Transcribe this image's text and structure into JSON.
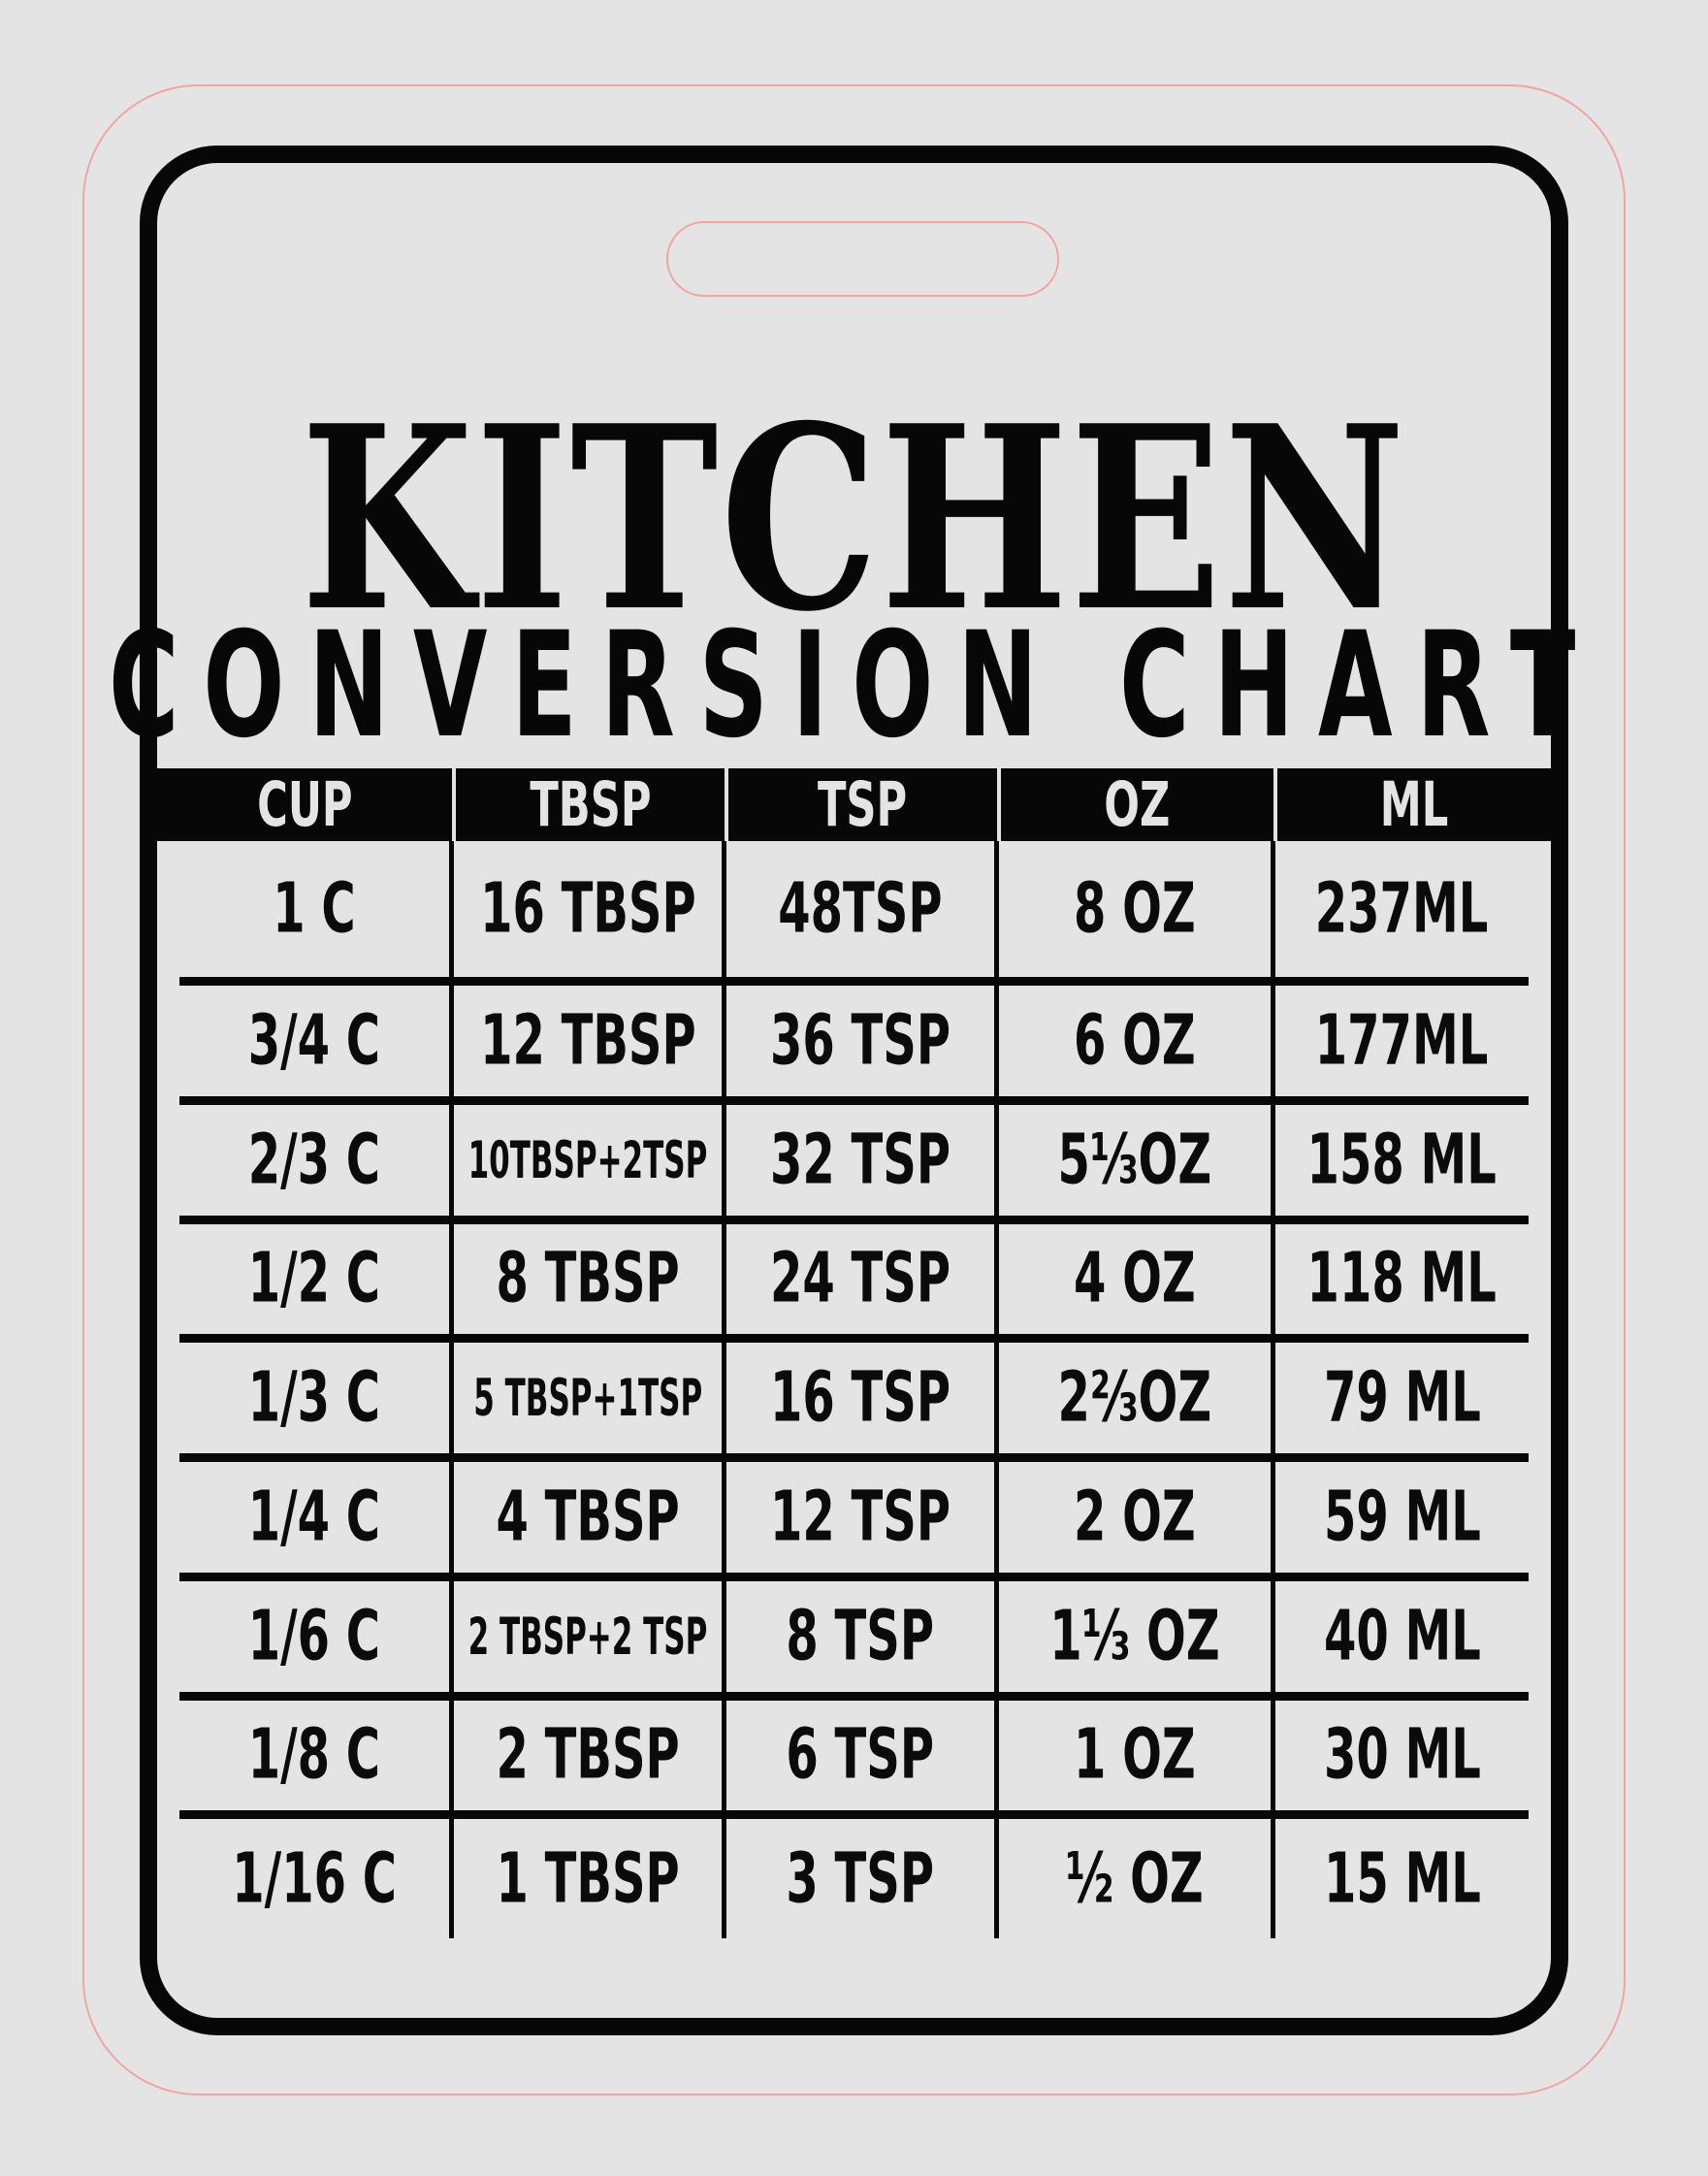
{
  "page": {
    "background_color": "#e5e4e4",
    "cut_line_color": "#f0a5a5",
    "card_border_color": "#070707"
  },
  "title": {
    "line1": "KITCHEN",
    "line2": "CONVERSION CHART"
  },
  "table": {
    "headers": [
      "CUP",
      "TBSP",
      "TSP",
      "OZ",
      "ML"
    ],
    "rows": [
      [
        "1 C",
        "16 TBSP",
        "48TSP",
        "8 OZ",
        "237ML"
      ],
      [
        "3/4 C",
        "12 TBSP",
        "36 TSP",
        "6 OZ",
        "177ML"
      ],
      [
        "2/3 C",
        "10TBSP+2TSP",
        "32 TSP",
        "5⅓OZ",
        "158 ML"
      ],
      [
        "1/2 C",
        "8 TBSP",
        "24 TSP",
        "4 OZ",
        "118 ML"
      ],
      [
        "1/3 C",
        "5 TBSP+1TSP",
        "16 TSP",
        "2⅔OZ",
        "79 ML"
      ],
      [
        "1/4 C",
        "4 TBSP",
        "12 TSP",
        "2 OZ",
        "59 ML"
      ],
      [
        "1/6 C",
        "2 TBSP+2 TSP",
        "8 TSP",
        "1⅓ OZ",
        "40 ML"
      ],
      [
        "1/8 C",
        "2 TBSP",
        "6 TSP",
        "1 OZ",
        "30 ML"
      ],
      [
        "1/16 C",
        "1 TBSP",
        "3 TSP",
        "½ OZ",
        "15 ML"
      ]
    ]
  }
}
